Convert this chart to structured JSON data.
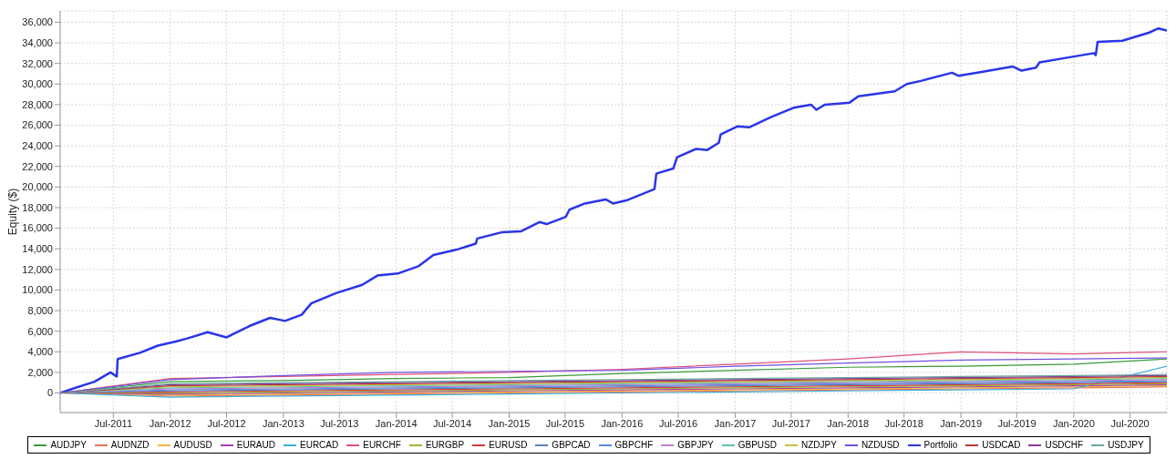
{
  "chart_data": {
    "type": "line",
    "ylabel": "Equity ($)",
    "legend": "bottom",
    "grid": true,
    "marker": "none",
    "line_style": "solid",
    "xlim": [
      "2011-01-10",
      "2020-10-28"
    ],
    "ylim": [
      -1900,
      37100
    ],
    "xticks": [
      {
        "value": "2011-07-01",
        "label": "Jul-2011"
      },
      {
        "value": "2012-01-01",
        "label": "Jan-2012"
      },
      {
        "value": "2012-07-01",
        "label": "Jul-2012"
      },
      {
        "value": "2013-01-01",
        "label": "Jan-2013"
      },
      {
        "value": "2013-07-01",
        "label": "Jul-2013"
      },
      {
        "value": "2014-01-01",
        "label": "Jan-2014"
      },
      {
        "value": "2014-07-01",
        "label": "Jul-2014"
      },
      {
        "value": "2015-01-01",
        "label": "Jan-2015"
      },
      {
        "value": "2015-07-01",
        "label": "Jul-2015"
      },
      {
        "value": "2016-01-01",
        "label": "Jan-2016"
      },
      {
        "value": "2016-07-01",
        "label": "Jul-2016"
      },
      {
        "value": "2017-01-01",
        "label": "Jan-2017"
      },
      {
        "value": "2017-07-01",
        "label": "Jul-2017"
      },
      {
        "value": "2018-01-01",
        "label": "Jan-2018"
      },
      {
        "value": "2018-07-01",
        "label": "Jul-2018"
      },
      {
        "value": "2019-01-01",
        "label": "Jan-2019"
      },
      {
        "value": "2019-07-01",
        "label": "Jul-2019"
      },
      {
        "value": "2020-01-01",
        "label": "Jan-2020"
      },
      {
        "value": "2020-07-01",
        "label": "Jul-2020"
      }
    ],
    "yticks": [
      0,
      {
        "value": 2000,
        "label": "2,000"
      },
      {
        "value": 4000,
        "label": "4,000"
      },
      {
        "value": 6000,
        "label": "6,000"
      },
      {
        "value": 8000,
        "label": "8,000"
      },
      {
        "value": 10000,
        "label": "10,000"
      },
      {
        "value": 12000,
        "label": "12,000"
      },
      {
        "value": 14000,
        "label": "14,000"
      },
      {
        "value": 16000,
        "label": "16,000"
      },
      {
        "value": 18000,
        "label": "18,000"
      },
      {
        "value": 20000,
        "label": "20,000"
      },
      {
        "value": 22000,
        "label": "22,000"
      },
      {
        "value": 24000,
        "label": "24,000"
      },
      {
        "value": 26000,
        "label": "26,000"
      },
      {
        "value": 28000,
        "label": "28,000"
      },
      {
        "value": 30000,
        "label": "30,000"
      },
      {
        "value": 32000,
        "label": "32,000"
      },
      {
        "value": 34000,
        "label": "34,000"
      },
      {
        "value": 36000,
        "label": "36,000"
      }
    ],
    "x": [
      "2011-01-10",
      "2012-01-01",
      "2013-01-01",
      "2014-01-01",
      "2015-01-01",
      "2016-01-01",
      "2017-01-01",
      "2018-01-01",
      "2019-01-01",
      "2020-01-01",
      "2020-10-28"
    ],
    "series": [
      {
        "name": "AUDJPY",
        "color": "#3a9a3a",
        "values": [
          0,
          1100,
          1200,
          1400,
          1500,
          1900,
          2200,
          2500,
          2600,
          2800,
          3300
        ]
      },
      {
        "name": "AUDNZD",
        "color": "#e8735a",
        "values": [
          0,
          -300,
          -200,
          -100,
          0,
          100,
          200,
          300,
          400,
          500,
          600
        ]
      },
      {
        "name": "AUDUSD",
        "color": "#f5b73b",
        "values": [
          0,
          -200,
          -100,
          0,
          100,
          200,
          300,
          400,
          500,
          600,
          700
        ]
      },
      {
        "name": "EURAUD",
        "color": "#a040b0",
        "values": [
          0,
          -100,
          0,
          100,
          200,
          300,
          400,
          500,
          600,
          700,
          800
        ]
      },
      {
        "name": "EURCAD",
        "color": "#3fb0d8",
        "values": [
          0,
          -400,
          -300,
          -200,
          -100,
          0,
          100,
          200,
          300,
          400,
          2600
        ]
      },
      {
        "name": "EURCHF",
        "color": "#e0507a",
        "values": [
          0,
          1400,
          1600,
          1800,
          2000,
          2300,
          2800,
          3300,
          4000,
          3800,
          4000
        ]
      },
      {
        "name": "EURGBP",
        "color": "#9ab83a",
        "values": [
          0,
          0,
          100,
          200,
          300,
          400,
          500,
          600,
          700,
          800,
          900
        ]
      },
      {
        "name": "EURUSD",
        "color": "#d83a3a",
        "values": [
          0,
          100,
          200,
          300,
          400,
          500,
          600,
          700,
          800,
          900,
          1000
        ]
      },
      {
        "name": "GBPCAD",
        "color": "#5b80b0",
        "values": [
          0,
          200,
          300,
          400,
          500,
          600,
          700,
          800,
          900,
          1000,
          1100
        ]
      },
      {
        "name": "GBPCHF",
        "color": "#5a8ae0",
        "values": [
          0,
          300,
          400,
          500,
          600,
          700,
          800,
          900,
          1000,
          1100,
          1200
        ]
      },
      {
        "name": "GBPJPY",
        "color": "#c080d0",
        "values": [
          0,
          400,
          500,
          600,
          700,
          800,
          900,
          1000,
          1100,
          1200,
          1300
        ]
      },
      {
        "name": "GBPUSD",
        "color": "#60c0b0",
        "values": [
          0,
          500,
          600,
          700,
          800,
          900,
          1000,
          1100,
          1200,
          1300,
          1400
        ]
      },
      {
        "name": "NZDJPY",
        "color": "#c8c040",
        "values": [
          0,
          600,
          700,
          800,
          900,
          1000,
          1100,
          1200,
          1300,
          1400,
          1500
        ]
      },
      {
        "name": "NZDUSD",
        "color": "#7050e0",
        "values": [
          0,
          1300,
          1700,
          2000,
          2100,
          2200,
          2600,
          2900,
          3200,
          3300,
          3400
        ]
      },
      {
        "name": "Portfolio",
        "color": "#2a35e8",
        "x": [
          "2011-01-10",
          "2011-02-18",
          "2011-05-01",
          "2011-06-22",
          "2011-07-12",
          "2011-07-15",
          "2011-09-25",
          "2011-11-22",
          "2012-01-19",
          "2012-02-25",
          "2012-05-01",
          "2012-07-01",
          "2012-09-13",
          "2012-11-19",
          "2013-01-06",
          "2013-03-01",
          "2013-04-01",
          "2013-06-20",
          "2013-09-13",
          "2013-11-01",
          "2014-01-06",
          "2014-03-13",
          "2014-05-01",
          "2014-07-13",
          "2014-09-15",
          "2014-09-20",
          "2014-12-08",
          "2015-02-09",
          "2015-04-09",
          "2015-05-02",
          "2015-07-03",
          "2015-07-15",
          "2015-09-03",
          "2015-11-09",
          "2015-12-03",
          "2016-01-15",
          "2016-04-15",
          "2016-04-21",
          "2016-06-15",
          "2016-06-27",
          "2016-08-28",
          "2016-10-03",
          "2016-11-09",
          "2016-11-15",
          "2017-01-09",
          "2017-02-15",
          "2017-04-28",
          "2017-07-09",
          "2017-09-03",
          "2017-09-21",
          "2017-10-18",
          "2018-01-06",
          "2018-02-03",
          "2018-06-01",
          "2018-07-10",
          "2018-08-24",
          "2018-12-03",
          "2018-12-24",
          "2019-03-13",
          "2019-06-18",
          "2019-07-16",
          "2019-09-01",
          "2019-09-12",
          "2019-12-18",
          "2020-03-06",
          "2020-03-12",
          "2020-03-18",
          "2020-06-06",
          "2020-09-01",
          "2020-10-01",
          "2020-10-28"
        ],
        "values": [
          0,
          400,
          1100,
          2000,
          1600,
          3300,
          3900,
          4600,
          5000,
          5300,
          5900,
          5400,
          6500,
          7300,
          7000,
          7600,
          8700,
          9700,
          10500,
          11400,
          11600,
          12300,
          13400,
          13900,
          14500,
          15000,
          15600,
          15700,
          16600,
          16400,
          17100,
          17800,
          18400,
          18800,
          18400,
          18700,
          19800,
          21300,
          21800,
          22900,
          23700,
          23600,
          24300,
          25100,
          25900,
          25800,
          26800,
          27700,
          28000,
          27500,
          28000,
          28200,
          28800,
          29300,
          30000,
          30300,
          31100,
          30800,
          31200,
          31700,
          31300,
          31600,
          32100,
          32600,
          33000,
          32800,
          34100,
          34200,
          35000,
          35400,
          35200
        ]
      },
      {
        "name": "USDCAD",
        "color": "#b83a3a",
        "values": [
          0,
          700,
          800,
          900,
          1000,
          1100,
          1200,
          1300,
          1400,
          1500,
          1600
        ]
      },
      {
        "name": "USDCHF",
        "color": "#8a3a9a",
        "values": [
          0,
          800,
          900,
          1000,
          1100,
          1200,
          1300,
          1400,
          1500,
          1600,
          1700
        ]
      },
      {
        "name": "USDJPY",
        "color": "#6aa8a0",
        "values": [
          0,
          900,
          1000,
          1100,
          1200,
          1300,
          1400,
          1500,
          1600,
          1700,
          1800
        ]
      }
    ]
  }
}
